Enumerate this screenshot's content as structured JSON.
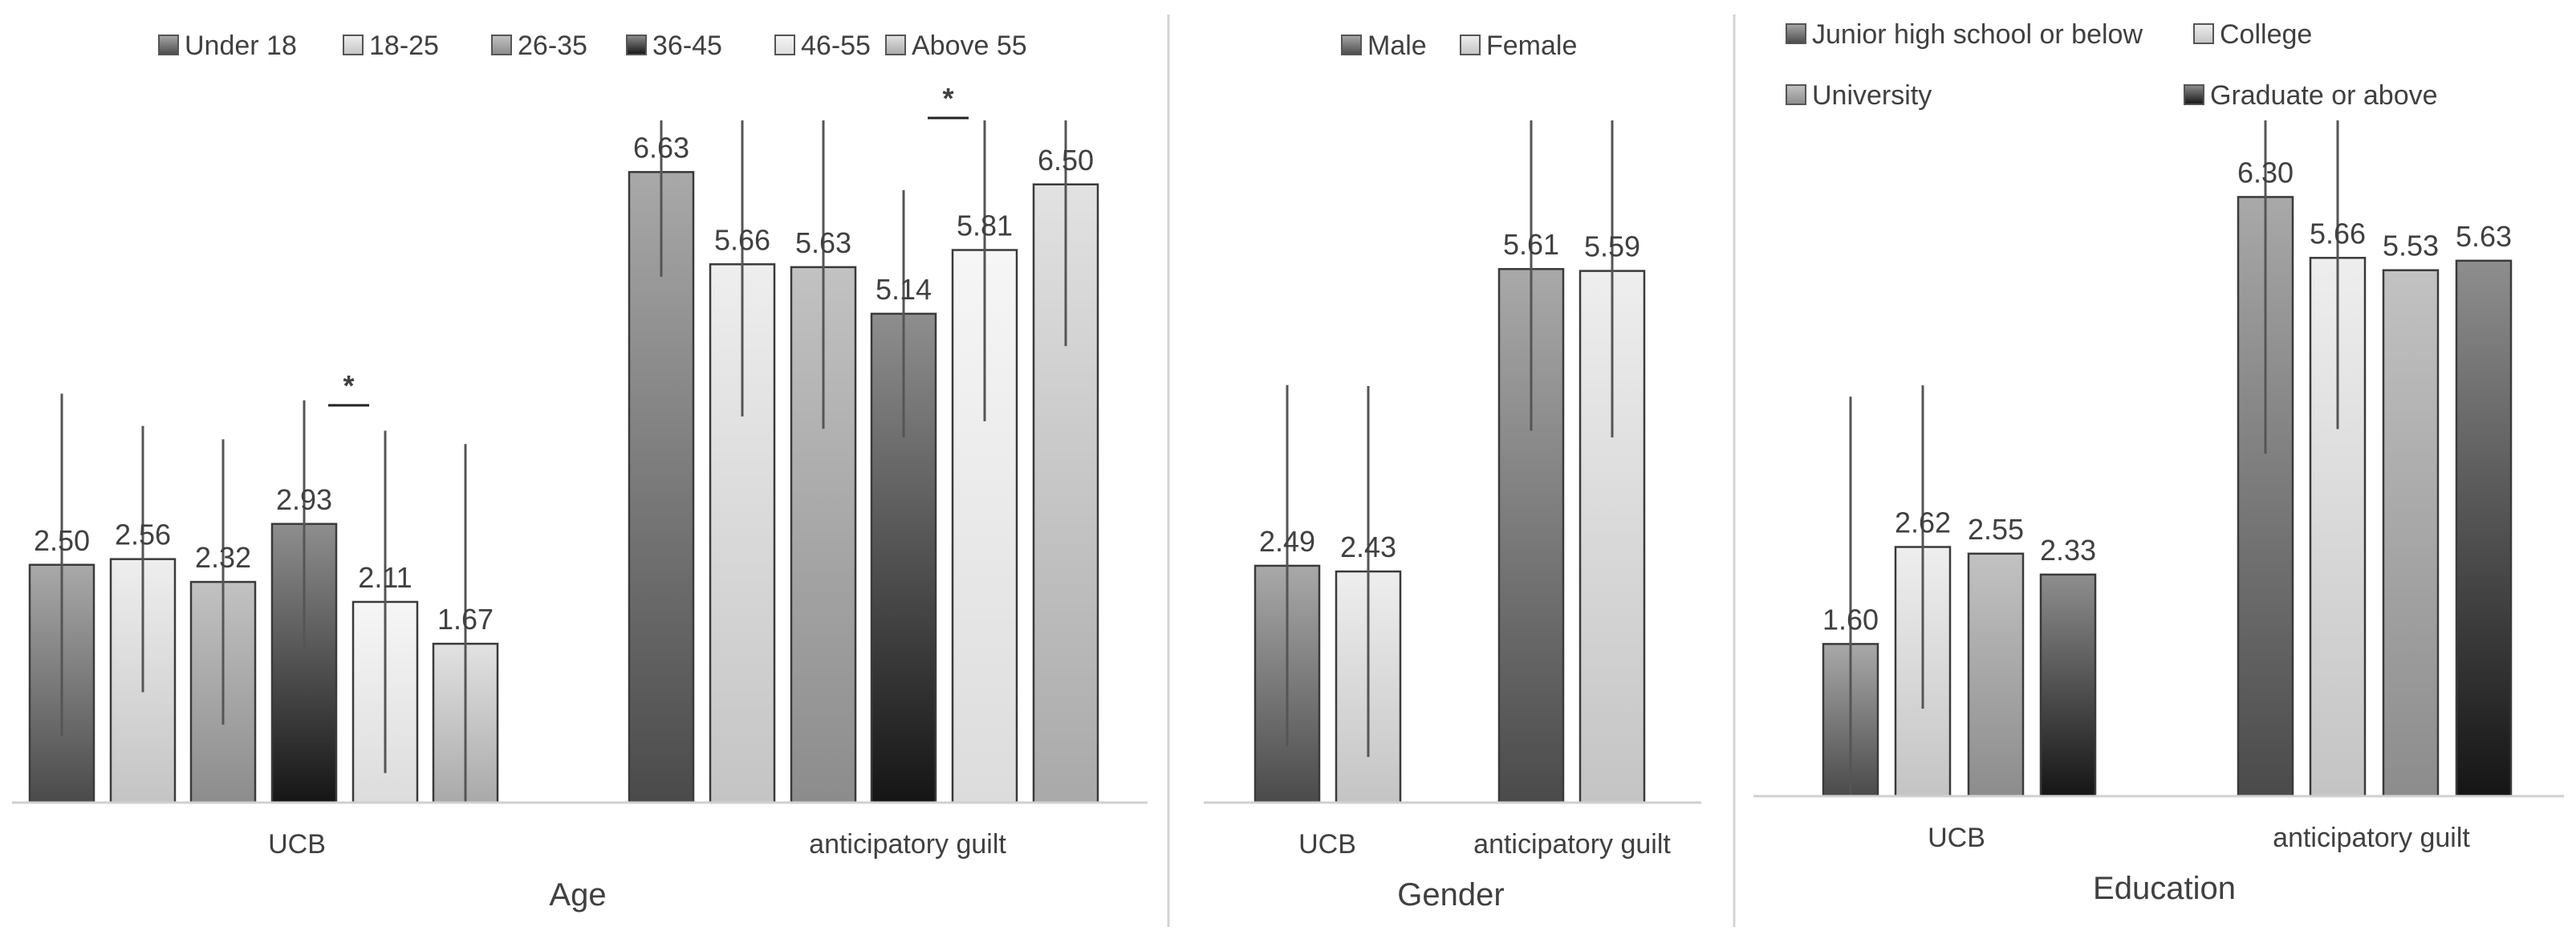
{
  "chart_data": [
    {
      "type": "bar",
      "title": "",
      "xlabel": "Age",
      "ylabel": "",
      "ylim": [
        0,
        7.5
      ],
      "categories": [
        "UCB",
        "anticipatory guilt"
      ],
      "legend_position": "top",
      "series": [
        {
          "name": "Under 18",
          "values": [
            2.5,
            6.63
          ],
          "labels": [
            "2.50",
            "6.63"
          ],
          "error": [
            1.8,
            1.1
          ],
          "shade": "dark-gradient"
        },
        {
          "name": "18-25",
          "values": [
            2.56,
            5.66
          ],
          "labels": [
            "2.56",
            "5.66"
          ],
          "error": [
            1.4,
            1.6
          ],
          "shade": "light-gradient"
        },
        {
          "name": "26-35",
          "values": [
            2.32,
            5.63
          ],
          "labels": [
            "2.32",
            "5.63"
          ],
          "error": [
            1.5,
            1.7
          ],
          "shade": "mid-gradient"
        },
        {
          "name": "36-45",
          "values": [
            2.93,
            5.14
          ],
          "labels": [
            "2.93",
            "5.14"
          ],
          "error": [
            1.3,
            1.3
          ],
          "shade": "black-gradient"
        },
        {
          "name": "46-55",
          "values": [
            2.11,
            5.81
          ],
          "labels": [
            "2.11",
            "5.81"
          ],
          "error": [
            1.8,
            1.8
          ],
          "shade": "very-light-gradient"
        },
        {
          "name": "Above 55",
          "values": [
            1.67,
            6.5
          ],
          "labels": [
            "1.67",
            "6.50"
          ],
          "error": [
            2.1,
            1.7
          ],
          "shade": "silver-gradient"
        }
      ],
      "significance": [
        {
          "category": "UCB",
          "between": [
            "36-45",
            "46-55"
          ],
          "label": "*"
        },
        {
          "category": "anticipatory guilt",
          "between": [
            "36-45",
            "46-55"
          ],
          "label": "*"
        }
      ]
    },
    {
      "type": "bar",
      "title": "",
      "xlabel": "Gender",
      "ylabel": "",
      "ylim": [
        0,
        7.5
      ],
      "categories": [
        "UCB",
        "anticipatory guilt"
      ],
      "legend_position": "top",
      "series": [
        {
          "name": "Male",
          "values": [
            2.49,
            5.61
          ],
          "labels": [
            "2.49",
            "5.61"
          ],
          "error": [
            1.9,
            1.7
          ],
          "shade": "dark-gradient"
        },
        {
          "name": "Female",
          "values": [
            2.43,
            5.59
          ],
          "labels": [
            "2.43",
            "5.59"
          ],
          "error": [
            1.95,
            1.75
          ],
          "shade": "light-gradient"
        }
      ],
      "significance": []
    },
    {
      "type": "bar",
      "title": "",
      "xlabel": "Education",
      "ylabel": "",
      "ylim": [
        0,
        7.5
      ],
      "categories": [
        "UCB",
        "anticipatory guilt"
      ],
      "legend_position": "top",
      "series": [
        {
          "name": "Junior high school or below",
          "values": [
            1.6,
            6.3
          ],
          "labels": [
            "1.60",
            "6.30"
          ],
          "error": [
            2.6,
            2.7
          ],
          "shade": "dark-gradient"
        },
        {
          "name": "College",
          "values": [
            2.62,
            5.66
          ],
          "labels": [
            "2.62",
            "5.66"
          ],
          "error": [
            1.7,
            1.8
          ],
          "shade": "light-gradient"
        },
        {
          "name": "University",
          "values": [
            2.55,
            5.53
          ],
          "labels": [
            "2.55",
            "5.53"
          ],
          "error": [
            0,
            0
          ],
          "shade": "mid-gradient"
        },
        {
          "name": "Graduate or above",
          "values": [
            2.33,
            5.63
          ],
          "labels": [
            "2.33",
            "5.63"
          ],
          "error": [
            0,
            0
          ],
          "shade": "black-gradient"
        }
      ],
      "significance": []
    }
  ]
}
